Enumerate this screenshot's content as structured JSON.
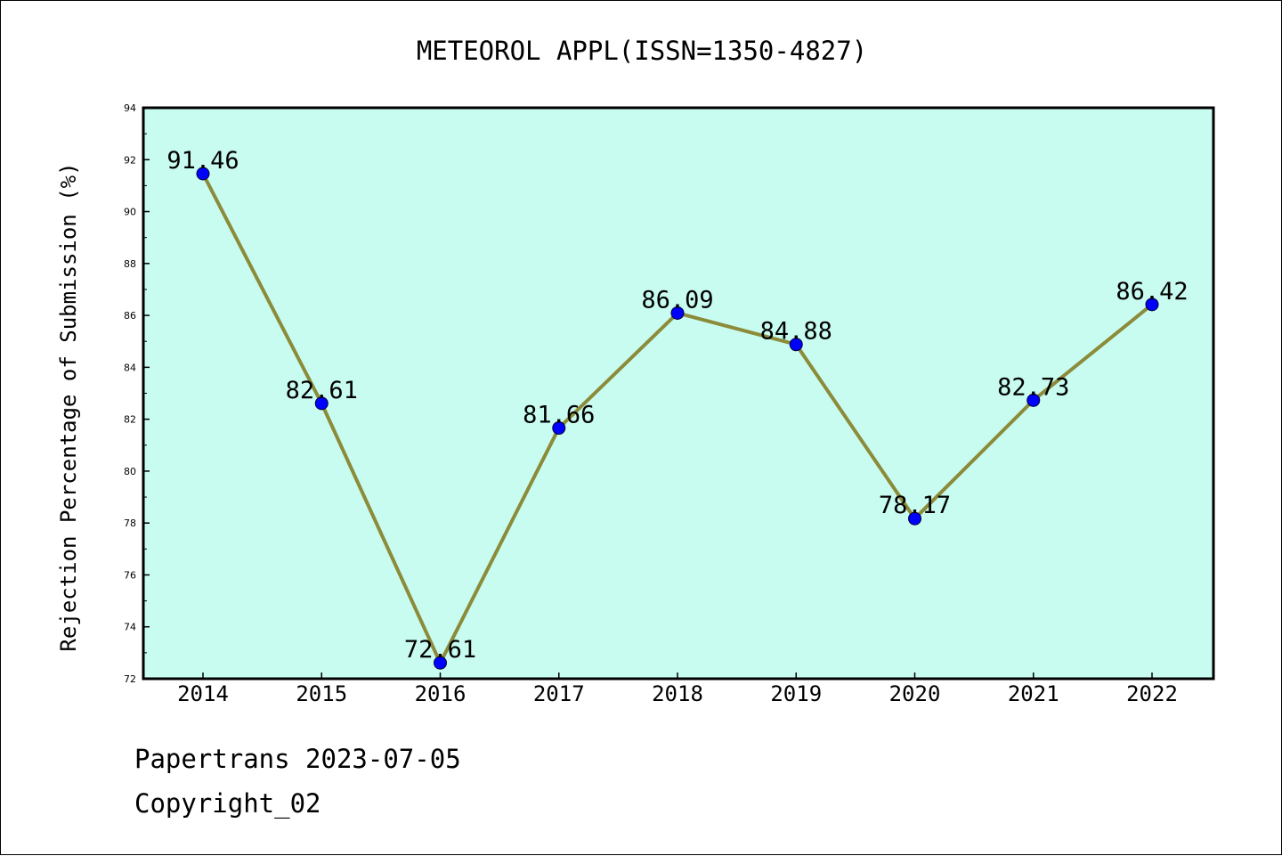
{
  "chart_data": {
    "type": "line",
    "title": "METEOROL APPL(ISSN=1350-4827)",
    "xlabel": "",
    "ylabel": "Rejection Percentage of Submission (%)",
    "categories": [
      "2014",
      "2015",
      "2016",
      "2017",
      "2018",
      "2019",
      "2020",
      "2021",
      "2022"
    ],
    "series": [
      {
        "values": [
          91.46,
          82.61,
          72.61,
          81.66,
          86.09,
          84.88,
          78.17,
          82.73,
          86.42
        ],
        "labels": [
          "91.46",
          "82.61",
          "72.61",
          "81.66",
          "86.09",
          "84.88",
          "78.17",
          "82.73",
          "86.42"
        ]
      }
    ],
    "ylim": [
      72,
      94
    ],
    "yticks": [
      "72",
      "74",
      "76",
      "78",
      "80",
      "82",
      "84",
      "86",
      "88",
      "90",
      "92",
      "94"
    ],
    "grid": false,
    "colors": {
      "plot_background": "#c8fcf0",
      "line": "#8b8b3a",
      "marker": "#0000ff"
    }
  },
  "footer": {
    "line1": "Papertrans 2023-07-05",
    "line2": "Copyright_02"
  }
}
